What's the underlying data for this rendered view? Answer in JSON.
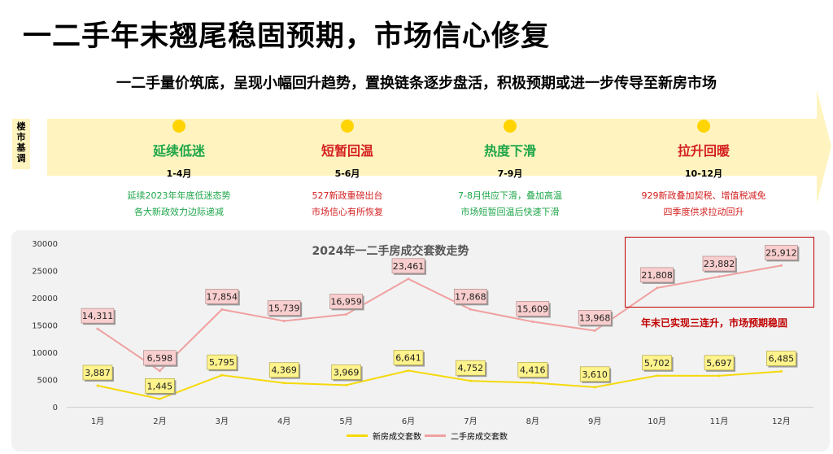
{
  "header": {
    "title": "一二手年末翘尾稳固预期，市场信心修复",
    "subtitle": "一二手量价筑底，呈现小幅回升趋势，置换链条逐步盘活，积极预期或进一步传导至新房市场"
  },
  "sidebar": {
    "label_chars": [
      "楼",
      "市",
      "基",
      "调"
    ]
  },
  "phases": [
    {
      "name": "延续低迷",
      "months": "1-4月",
      "desc1": "延续2023年年底低迷态势",
      "desc2": "各大新政效力边际递减",
      "color": "#1fa64a"
    },
    {
      "name": "短暂回温",
      "months": "5-6月",
      "desc1": "527新政重磅出台",
      "desc2": "市场信心有所恢复",
      "color": "#d42020"
    },
    {
      "name": "热度下滑",
      "months": "7-9月",
      "desc1": "7-8月供应下滑，叠加高温",
      "desc2": "市场短暂回温后快速下滑",
      "color": "#1fa64a"
    },
    {
      "name": "拉升回暖",
      "months": "10-12月",
      "desc1": "929新政叠加契税、增值税减免",
      "desc2": "四季度供求拉动回升",
      "color": "#d42020"
    }
  ],
  "colors": {
    "banner": "#fff4bf",
    "new_house": "#f5d90a",
    "second_hand": "#f0a0a0",
    "new_label_bg": "#fff38c",
    "second_label_bg": "#f9cece",
    "annotation": "#c00000"
  },
  "chart_data": {
    "type": "line",
    "title": "2024年一二手房成交套数走势",
    "categories": [
      "1月",
      "2月",
      "3月",
      "4月",
      "5月",
      "6月",
      "7月",
      "8月",
      "9月",
      "10月",
      "11月",
      "12月"
    ],
    "series": [
      {
        "name": "新房成交套数",
        "values": [
          3887,
          1445,
          5795,
          4369,
          3969,
          6641,
          4752,
          4416,
          3610,
          5702,
          5697,
          6485
        ],
        "labels": [
          "3,887",
          "1,445",
          "5,795",
          "4,369",
          "3,969",
          "6,641",
          "4,752",
          "4,416",
          "3,610",
          "5,702",
          "5,697",
          "6,485"
        ]
      },
      {
        "name": "二手房成交套数",
        "values": [
          14311,
          6598,
          17854,
          15739,
          16959,
          23461,
          17868,
          15609,
          13968,
          21808,
          23882,
          25912
        ],
        "labels": [
          "14,311",
          "6,598",
          "17,854",
          "15,739",
          "16,959",
          "23,461",
          "17,868",
          "15,609",
          "13,968",
          "21,808",
          "23,882",
          "25,912"
        ]
      }
    ],
    "yticks": [
      0,
      5000,
      10000,
      15000,
      20000,
      25000,
      30000
    ],
    "ylim": [
      0,
      30000
    ],
    "grid": false,
    "legend_position": "bottom",
    "annotation": "年末已实现三连升，市场预期稳固"
  }
}
